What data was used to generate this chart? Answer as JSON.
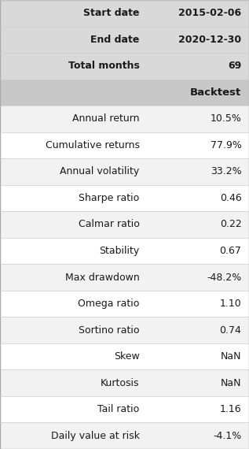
{
  "header_rows": [
    {
      "label": "Start date",
      "value": "2015-02-06"
    },
    {
      "label": "End date",
      "value": "2020-12-30"
    },
    {
      "label": "Total months",
      "value": "69"
    }
  ],
  "column_header": {
    "label": "",
    "value": "Backtest"
  },
  "data_rows": [
    {
      "label": "Annual return",
      "value": "10.5%"
    },
    {
      "label": "Cumulative returns",
      "value": "77.9%"
    },
    {
      "label": "Annual volatility",
      "value": "33.2%"
    },
    {
      "label": "Sharpe ratio",
      "value": "0.46"
    },
    {
      "label": "Calmar ratio",
      "value": "0.22"
    },
    {
      "label": "Stability",
      "value": "0.67"
    },
    {
      "label": "Max drawdown",
      "value": "-48.2%"
    },
    {
      "label": "Omega ratio",
      "value": "1.10"
    },
    {
      "label": "Sortino ratio",
      "value": "0.74"
    },
    {
      "label": "Skew",
      "value": "NaN"
    },
    {
      "label": "Kurtosis",
      "value": "NaN"
    },
    {
      "label": "Tail ratio",
      "value": "1.16"
    },
    {
      "label": "Daily value at risk",
      "value": "-4.1%"
    }
  ],
  "bg_color_header": "#d9d9d9",
  "bg_color_col_header": "#c8c8c8",
  "bg_color_even": "#f2f2f2",
  "bg_color_odd": "#ffffff",
  "text_color": "#1a1a1a",
  "font_size": 9,
  "header_font_size": 9,
  "col_header_font_size": 9.5,
  "fig_width": 3.17,
  "fig_height": 5.7
}
